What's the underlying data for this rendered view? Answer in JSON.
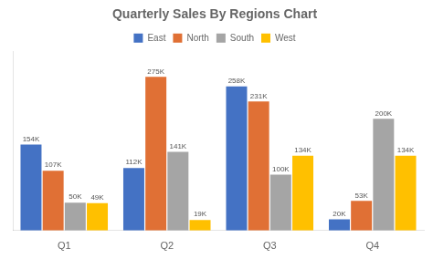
{
  "chart_data": {
    "type": "bar",
    "title": "Quarterly Sales By Regions Chart",
    "categories": [
      "Q1",
      "Q2",
      "Q3",
      "Q4"
    ],
    "series": [
      {
        "name": "East",
        "color": "#4472c4",
        "values": [
          154,
          112,
          258,
          20
        ],
        "value_labels": [
          "154K",
          "112K",
          "258K",
          "20K"
        ]
      },
      {
        "name": "North",
        "color": "#e07035",
        "values": [
          107,
          275,
          231,
          53
        ],
        "value_labels": [
          "107K",
          "275K",
          "231K",
          "53K"
        ]
      },
      {
        "name": "South",
        "color": "#a5a5a5",
        "values": [
          50,
          141,
          100,
          200
        ],
        "value_labels": [
          "50K",
          "141K",
          "100K",
          "200K"
        ]
      },
      {
        "name": "West",
        "color": "#ffc000",
        "values": [
          49,
          19,
          134,
          134
        ],
        "value_labels": [
          "49K",
          "19K",
          "134K",
          "134K"
        ]
      }
    ],
    "ylim": [
      0,
      320
    ],
    "grid": false,
    "legend": "top",
    "data_labels": true,
    "tick_labels": "x"
  }
}
